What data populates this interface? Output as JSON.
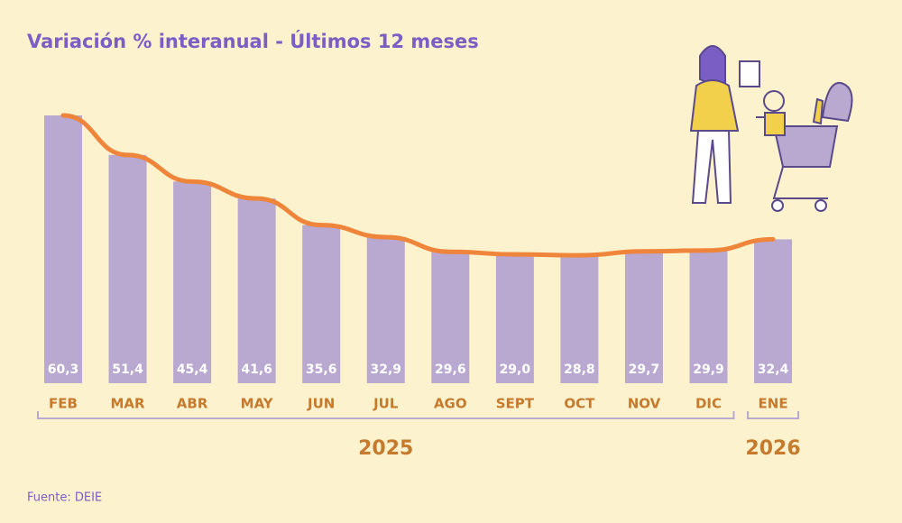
{
  "chart_data": {
    "type": "bar_line",
    "title": "Variación % interanual - Últimos 12 meses",
    "categories": [
      "FEB",
      "MAR",
      "ABR",
      "MAY",
      "JUN",
      "JUL",
      "AGO",
      "SEPT",
      "OCT",
      "NOV",
      "DIC",
      "ENE"
    ],
    "values": [
      60.3,
      51.4,
      45.4,
      41.6,
      35.6,
      32.9,
      29.6,
      29.0,
      28.8,
      29.7,
      29.9,
      32.4
    ],
    "value_labels": [
      "60,3",
      "51,4",
      "45,4",
      "41,6",
      "35,6",
      "32,9",
      "29,6",
      "29,0",
      "28,8",
      "29,7",
      "29,9",
      "32,4"
    ],
    "bar_color": "#b9a8d0",
    "line_color": "#ee853a",
    "groups": [
      {
        "label": "2025",
        "count": 11
      },
      {
        "label": "2026",
        "count": 1
      }
    ],
    "source": "Fuente: DEIE"
  }
}
